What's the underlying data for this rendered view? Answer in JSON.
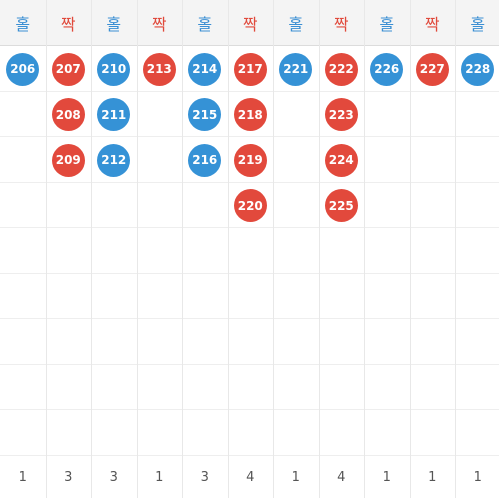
{
  "colors": {
    "odd": "#3592d6",
    "even": "#e2493c",
    "header_bg": "#f4f4f4"
  },
  "columns": [
    {
      "label": "홀",
      "type": "odd",
      "balls": [
        "206"
      ],
      "count": "1"
    },
    {
      "label": "짝",
      "type": "even",
      "balls": [
        "207",
        "208",
        "209"
      ],
      "count": "3"
    },
    {
      "label": "홀",
      "type": "odd",
      "balls": [
        "210",
        "211",
        "212"
      ],
      "count": "3"
    },
    {
      "label": "짝",
      "type": "even",
      "balls": [
        "213"
      ],
      "count": "1"
    },
    {
      "label": "홀",
      "type": "odd",
      "balls": [
        "214",
        "215",
        "216"
      ],
      "count": "3"
    },
    {
      "label": "짝",
      "type": "even",
      "balls": [
        "217",
        "218",
        "219",
        "220"
      ],
      "count": "4"
    },
    {
      "label": "홀",
      "type": "odd",
      "balls": [
        "221"
      ],
      "count": "1"
    },
    {
      "label": "짝",
      "type": "even",
      "balls": [
        "222",
        "223",
        "224",
        "225"
      ],
      "count": "4"
    },
    {
      "label": "홀",
      "type": "odd",
      "balls": [
        "226"
      ],
      "count": "1"
    },
    {
      "label": "짝",
      "type": "even",
      "balls": [
        "227"
      ],
      "count": "1"
    },
    {
      "label": "홀",
      "type": "odd",
      "balls": [
        "228"
      ],
      "count": "1"
    }
  ]
}
